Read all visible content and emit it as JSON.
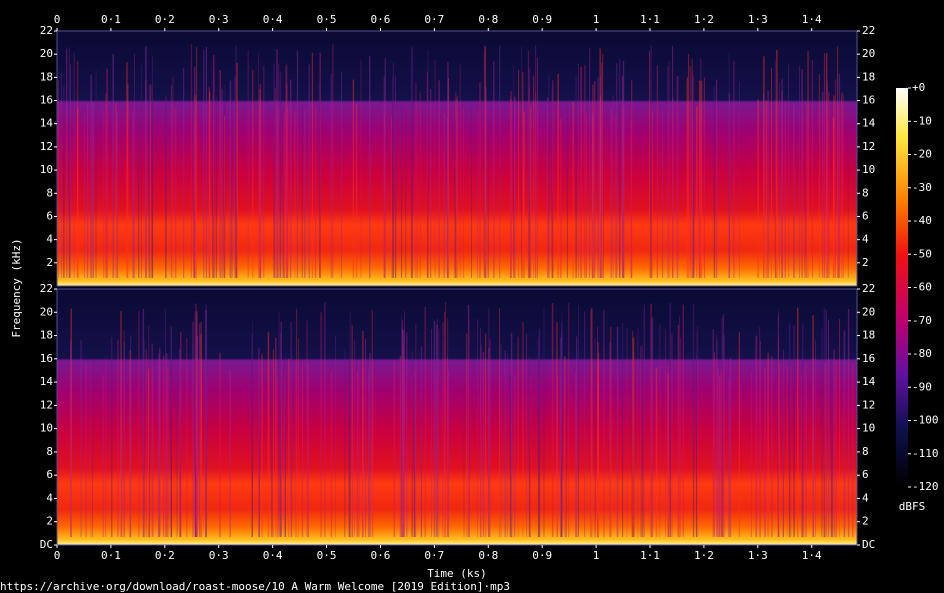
{
  "chart_data": [
    {
      "type": "spectrogram",
      "xlim": [
        0,
        1.484
      ],
      "ylim": [
        0,
        22
      ],
      "xticks": [
        0,
        {
          "value": 0.1,
          "label": "0·1"
        },
        {
          "value": 0.2,
          "label": "0·2"
        },
        {
          "value": 0.3,
          "label": "0·3"
        },
        {
          "value": 0.4,
          "label": "0·4"
        },
        {
          "value": 0.5,
          "label": "0·5"
        },
        {
          "value": 0.6,
          "label": "0·6"
        },
        {
          "value": 0.7,
          "label": "0·7"
        },
        {
          "value": 0.8,
          "label": "0·8"
        },
        {
          "value": 0.9,
          "label": "0·9"
        },
        1,
        {
          "value": 1.1,
          "label": "1·1"
        },
        {
          "value": 1.2,
          "label": "1·2"
        },
        {
          "value": 1.3,
          "label": "1·3"
        },
        {
          "value": 1.4,
          "label": "1·4"
        }
      ],
      "yticks": [
        2,
        4,
        6,
        8,
        10,
        12,
        14,
        16,
        18,
        20,
        22
      ]
    },
    {
      "type": "spectrogram",
      "xlim": [
        0,
        1.484
      ],
      "ylim": [
        0,
        22
      ],
      "xticks": [
        0,
        {
          "value": 0.1,
          "label": "0·1"
        },
        {
          "value": 0.2,
          "label": "0·2"
        },
        {
          "value": 0.3,
          "label": "0·3"
        },
        {
          "value": 0.4,
          "label": "0·4"
        },
        {
          "value": 0.5,
          "label": "0·5"
        },
        {
          "value": 0.6,
          "label": "0·6"
        },
        {
          "value": 0.7,
          "label": "0·7"
        },
        {
          "value": 0.8,
          "label": "0·8"
        },
        {
          "value": 0.9,
          "label": "0·9"
        },
        1,
        {
          "value": 1.1,
          "label": "1·1"
        },
        {
          "value": 1.2,
          "label": "1·2"
        },
        {
          "value": 1.3,
          "label": "1·3"
        },
        {
          "value": 1.4,
          "label": "1·4"
        }
      ],
      "yticks": [
        {
          "value": 0,
          "label": "DC"
        },
        2,
        4,
        6,
        8,
        10,
        12,
        14,
        16,
        18,
        20,
        22
      ]
    }
  ],
  "xlabel": "Time (ks)",
  "ylabel": "Frequency (kHz)",
  "source": "https://archive·org/download/roast-moose/10 A Warm Welcome [2019 Edition]·mp3",
  "colorbar": {
    "label": "dBFS",
    "lim": [
      -120,
      0
    ],
    "ticks": [
      {
        "value": 0,
        "label": "+0"
      },
      -10,
      -20,
      -30,
      -40,
      -50,
      -60,
      -70,
      -80,
      -90,
      -100,
      -110,
      -120
    ]
  }
}
